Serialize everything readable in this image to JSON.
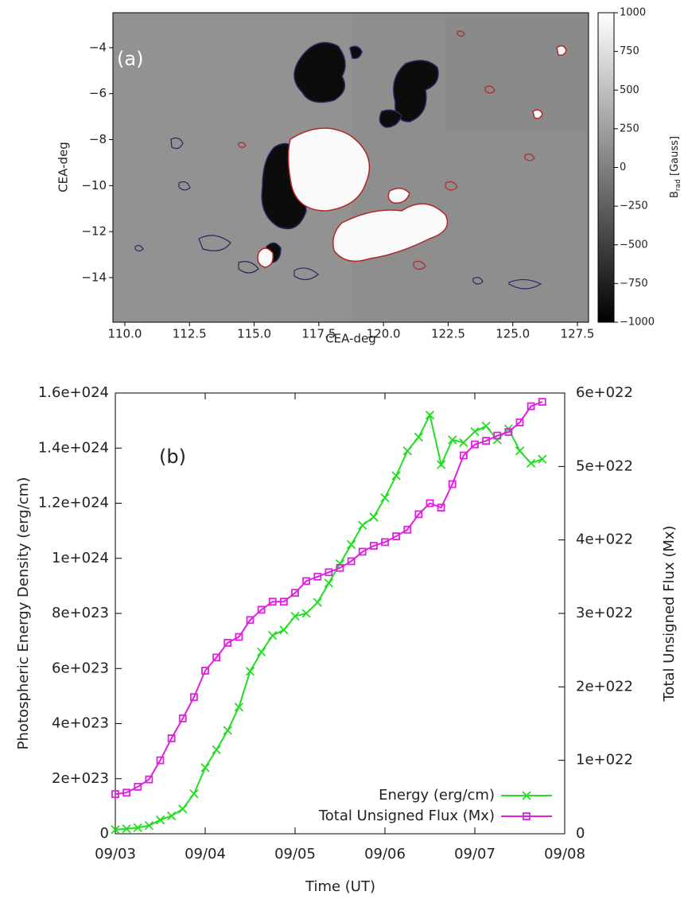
{
  "chart_data": [
    {
      "type": "heatmap",
      "annotation": "(a)",
      "xlabel": "CEA-deg",
      "ylabel": "CEA-deg",
      "xlim": [
        109.54,
        127.93
      ],
      "ylim": [
        -15.94,
        -2.48
      ],
      "xticks": [
        {
          "value": 110,
          "label": "110.0"
        },
        {
          "value": 112.5,
          "label": "112.5"
        },
        {
          "value": 115,
          "label": "115.0"
        },
        {
          "value": 117.5,
          "label": "117.5"
        },
        {
          "value": 120,
          "label": "120.0"
        },
        {
          "value": 122.5,
          "label": "122.5"
        },
        {
          "value": 125,
          "label": "125.0"
        },
        {
          "value": 127.5,
          "label": "127.5"
        }
      ],
      "yticks": [
        {
          "value": -14,
          "label": "−14"
        },
        {
          "value": -12,
          "label": "−12"
        },
        {
          "value": -10,
          "label": "−10"
        },
        {
          "value": -8,
          "label": "−8"
        },
        {
          "value": -6,
          "label": "−6"
        },
        {
          "value": -4,
          "label": "−4"
        }
      ],
      "colorbar": {
        "label": {
          "base": "B",
          "sub": "rad",
          "rest": " [Gauss]"
        },
        "colormap": "gray",
        "lim": [
          -1000,
          1000
        ],
        "ticks": [
          {
            "value": -1000,
            "label": "−1000"
          },
          {
            "value": -750,
            "label": "−750"
          },
          {
            "value": -500,
            "label": "−500"
          },
          {
            "value": -250,
            "label": "−250"
          },
          0,
          250,
          500,
          750,
          1000
        ]
      }
    },
    {
      "type": "line",
      "annotation": "(b)",
      "xlabel": "Time (UT)",
      "ylabel": "Photospheric Energy Density (erg/cm)",
      "y2label": "Total Unsigned Flux (Mx)",
      "x": [
        3,
        3.125,
        3.25,
        3.375,
        3.5,
        3.625,
        3.75,
        3.875,
        4,
        4.125,
        4.25,
        4.375,
        4.5,
        4.625,
        4.75,
        4.875,
        5,
        5.125,
        5.25,
        5.375,
        5.5,
        5.625,
        5.75,
        5.875,
        6,
        6.125,
        6.25,
        6.375,
        6.5,
        6.625,
        6.75,
        6.875,
        7,
        7.125,
        7.25,
        7.375,
        7.5,
        7.625,
        7.75
      ],
      "xlim": [
        3,
        8
      ],
      "xticks": [
        {
          "value": 3,
          "label": "09/03"
        },
        {
          "value": 4,
          "label": "09/04"
        },
        {
          "value": 5,
          "label": "09/05"
        },
        {
          "value": 6,
          "label": "09/06"
        },
        {
          "value": 7,
          "label": "09/07"
        },
        {
          "value": 8,
          "label": "09/08"
        }
      ],
      "ylim": [
        0,
        1.6e+24
      ],
      "yticks": [
        0,
        {
          "value": 2e+23,
          "label": "2e+023"
        },
        {
          "value": 4e+23,
          "label": "4e+023"
        },
        {
          "value": 6e+23,
          "label": "6e+023"
        },
        {
          "value": 8e+23,
          "label": "8e+023"
        },
        {
          "value": 1e+24,
          "label": "1e+024"
        },
        {
          "value": 1.2e+24,
          "label": "1.2e+024"
        },
        {
          "value": 1.4e+24,
          "label": "1.4e+024"
        },
        {
          "value": 1.6e+24,
          "label": "1.6e+024"
        }
      ],
      "y2lim": [
        0,
        6e+22
      ],
      "y2ticks": [
        0,
        {
          "value": 1e+22,
          "label": "1e+022"
        },
        {
          "value": 2e+22,
          "label": "2e+022"
        },
        {
          "value": 3e+22,
          "label": "3e+022"
        },
        {
          "value": 4e+22,
          "label": "4e+022"
        },
        {
          "value": 5e+22,
          "label": "5e+022"
        },
        {
          "value": 6e+22,
          "label": "6e+022"
        }
      ],
      "legend": "lower right",
      "series": [
        {
          "name": "Energy (erg/cm)",
          "color": "#22dd22",
          "marker": "x",
          "values": [
            1.5e+22,
            1.8e+22,
            2.2e+22,
            3e+22,
            5e+22,
            6.5e+22,
            9e+22,
            1.45e+23,
            2.4e+23,
            3.05e+23,
            3.75e+23,
            4.6e+23,
            5.9e+23,
            6.6e+23,
            7.2e+23,
            7.4e+23,
            7.9e+23,
            8e+23,
            8.4e+23,
            9.1e+23,
            9.8e+23,
            1.05e+24,
            1.12e+24,
            1.15e+24,
            1.22e+24,
            1.3e+24,
            1.39e+24,
            1.44e+24,
            1.52e+24,
            1.34e+24,
            1.43e+24,
            1.42e+24,
            1.46e+24,
            1.48e+24,
            1.43e+24,
            1.47e+24,
            1.39e+24,
            1.345e+24,
            1.36e+24
          ]
        },
        {
          "name": "Total Unsigned Flux (Mx)",
          "color": "#e020e0",
          "marker": "square",
          "axis": "y2",
          "values": [
            5.4e+21,
            5.6e+21,
            6.4e+21,
            7.4e+21,
            1e+22,
            1.3e+22,
            1.57e+22,
            1.86e+22,
            2.22e+22,
            2.4e+22,
            2.6e+22,
            2.68e+22,
            2.91e+22,
            3.05e+22,
            3.16e+22,
            3.16e+22,
            3.28e+22,
            3.44e+22,
            3.5e+22,
            3.56e+22,
            3.62e+22,
            3.71e+22,
            3.84e+22,
            3.92e+22,
            3.97e+22,
            4.05e+22,
            4.14e+22,
            4.35e+22,
            4.5e+22,
            4.44e+22,
            4.76e+22,
            5.15e+22,
            5.3e+22,
            5.35e+22,
            5.42e+22,
            5.47e+22,
            5.6e+22,
            5.82e+22,
            5.88e+22
          ]
        }
      ]
    }
  ]
}
